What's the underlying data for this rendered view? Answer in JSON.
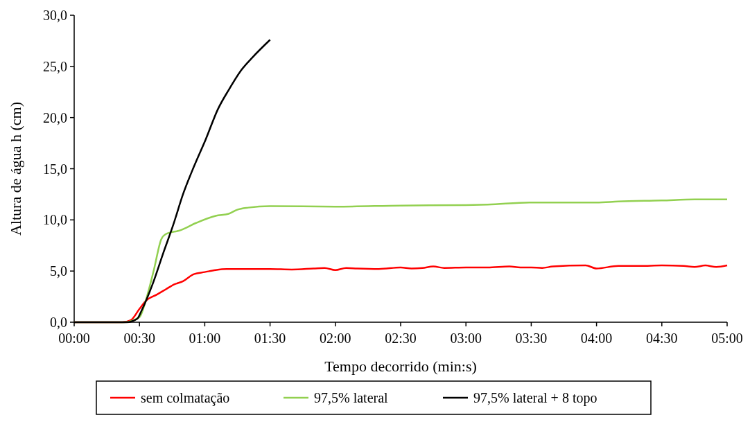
{
  "chart_data": {
    "type": "line",
    "xlabel": "Tempo decorrido (min:s)",
    "ylabel": "Altura de água h (cm)",
    "xlim": [
      0,
      300
    ],
    "xticks": [
      {
        "value": 0,
        "label": "00:00"
      },
      {
        "value": 30,
        "label": "00:30"
      },
      {
        "value": 60,
        "label": "01:00"
      },
      {
        "value": 90,
        "label": "01:30"
      },
      {
        "value": 120,
        "label": "02:00"
      },
      {
        "value": 150,
        "label": "02:30"
      },
      {
        "value": 180,
        "label": "03:00"
      },
      {
        "value": 210,
        "label": "03:30"
      },
      {
        "value": 240,
        "label": "04:00"
      },
      {
        "value": 270,
        "label": "04:30"
      },
      {
        "value": 300,
        "label": "05:00"
      }
    ],
    "ylim": [
      0,
      30
    ],
    "yticks": [
      {
        "value": 0,
        "label": "0,0"
      },
      {
        "value": 5,
        "label": "5,0"
      },
      {
        "value": 10,
        "label": "10,0"
      },
      {
        "value": 15,
        "label": "15,0"
      },
      {
        "value": 20,
        "label": "20,0"
      },
      {
        "value": 25,
        "label": "25,0"
      },
      {
        "value": 30,
        "label": "30,0"
      }
    ],
    "grid": false,
    "legend": "bottom",
    "marker": "none",
    "line_style": "solid",
    "series": [
      {
        "name": "sem colmatação",
        "color": "#ff0000",
        "x": [
          0,
          22,
          26,
          30,
          33,
          38,
          42,
          46,
          50,
          55,
          60,
          65,
          70,
          90,
          100,
          110,
          115,
          120,
          125,
          130,
          140,
          150,
          155,
          160,
          165,
          170,
          180,
          190,
          200,
          205,
          210,
          215,
          220,
          235,
          240,
          250,
          260,
          270,
          280,
          285,
          290,
          295,
          300
        ],
        "values": [
          0,
          0,
          0.2,
          1.3,
          2.1,
          2.7,
          3.2,
          3.7,
          4.0,
          4.7,
          4.9,
          5.1,
          5.2,
          5.2,
          5.15,
          5.25,
          5.3,
          5.1,
          5.3,
          5.25,
          5.2,
          5.35,
          5.25,
          5.3,
          5.45,
          5.3,
          5.35,
          5.35,
          5.45,
          5.35,
          5.35,
          5.3,
          5.45,
          5.55,
          5.25,
          5.5,
          5.5,
          5.55,
          5.5,
          5.4,
          5.55,
          5.4,
          5.55
        ]
      },
      {
        "name": "97,5% lateral",
        "color": "#92d050",
        "x": [
          0,
          23,
          30,
          33,
          36.6,
          40,
          42,
          49,
          56,
          65,
          71,
          75,
          80,
          90,
          120,
          150,
          180,
          190,
          210,
          240,
          250,
          270,
          285,
          300
        ],
        "values": [
          0,
          0,
          0.5,
          2.2,
          5.1,
          8.1,
          8.6,
          9.0,
          9.7,
          10.4,
          10.6,
          11.0,
          11.2,
          11.35,
          11.3,
          11.4,
          11.45,
          11.5,
          11.7,
          11.7,
          11.8,
          11.9,
          12.0,
          12.0
        ]
      },
      {
        "name": "97,5% lateral + 8 topo",
        "color": "#000000",
        "x": [
          0,
          24,
          29,
          31,
          36,
          41,
          45.5,
          50,
          55,
          60.5,
          66,
          71,
          77,
          82,
          90
        ],
        "values": [
          0,
          0,
          0.34,
          1.15,
          3.7,
          6.8,
          9.5,
          12.5,
          15.2,
          17.9,
          20.8,
          22.7,
          24.7,
          25.9,
          27.6
        ]
      }
    ]
  }
}
